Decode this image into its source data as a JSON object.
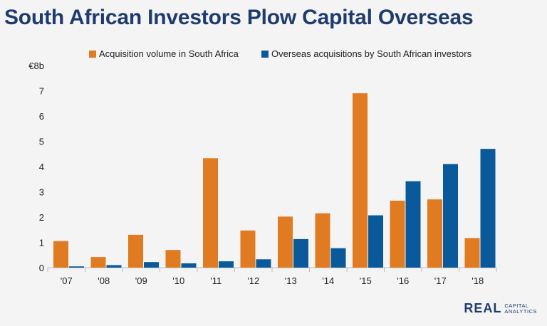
{
  "page": {
    "title": "South African Investors Plow Capital Overseas"
  },
  "logo": {
    "main": "REAL",
    "sub_line1": "CAPITAL",
    "sub_line2": "ANALYTICS"
  },
  "chart_data": {
    "type": "bar",
    "title": "South African Investors Plow Capital Overseas",
    "categories": [
      "'07",
      "'08",
      "'09",
      "'10",
      "'11",
      "'12",
      "'13",
      "'14",
      "'15",
      "'16",
      "'17",
      "'18"
    ],
    "series": [
      {
        "name": "Acquisition volume in South Africa",
        "color": "#e07b22",
        "values": [
          1.05,
          0.42,
          1.3,
          0.7,
          4.33,
          1.47,
          2.02,
          2.15,
          6.9,
          2.65,
          2.7,
          1.17
        ]
      },
      {
        "name": "Overseas acquisitions by South African investors",
        "color": "#0a5a9b",
        "values": [
          0.05,
          0.1,
          0.22,
          0.17,
          0.25,
          0.33,
          1.13,
          0.77,
          2.07,
          3.42,
          4.1,
          4.7
        ]
      }
    ],
    "y_ticks": [
      "0",
      "1",
      "2",
      "3",
      "4",
      "5",
      "6",
      "7",
      "€8b"
    ],
    "ylim": [
      0,
      8
    ],
    "xlabel": "",
    "ylabel": "",
    "grid": false,
    "legend_position": "top"
  }
}
